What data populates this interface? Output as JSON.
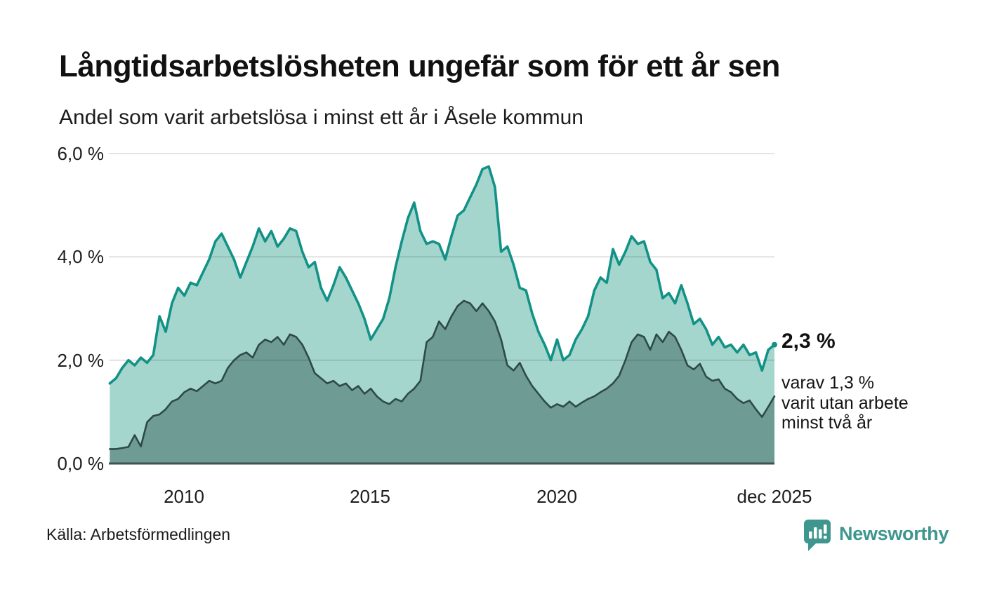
{
  "header": {
    "title": "Långtidsarbetslösheten ungefär som för ett år sen",
    "subtitle": "Andel som varit arbetslösa i minst ett år i Åsele kommun"
  },
  "chart_data": {
    "type": "area",
    "title": "Långtidsarbetslösheten ungefär som för ett år sen",
    "subtitle": "Andel som varit arbetslösa i minst ett år i Åsele kommun",
    "x_start_year": 2008.0,
    "x_end_year": 2025.92,
    "x_step_years": 0.1667,
    "x_tick_labels": [
      "2010",
      "2015",
      "2020",
      "dec 2025"
    ],
    "y_tick_labels": [
      "6,0 %",
      "4,0 %",
      "2,0 %",
      "0,0 %"
    ],
    "y_grid_values": [
      2,
      4,
      6
    ],
    "ylim": [
      0,
      6
    ],
    "grid": true,
    "legend_position": "none",
    "unit": "%",
    "series": [
      {
        "name": "andel arbetslösa minst ett år",
        "color": "#129286",
        "fill": "#a5d6ce",
        "latest_value": 2.3,
        "values": [
          1.55,
          1.65,
          1.85,
          2.0,
          1.9,
          2.05,
          1.95,
          2.1,
          2.85,
          2.55,
          3.1,
          3.4,
          3.25,
          3.5,
          3.45,
          3.7,
          3.95,
          4.3,
          4.45,
          4.2,
          3.95,
          3.6,
          3.9,
          4.2,
          4.55,
          4.3,
          4.5,
          4.2,
          4.35,
          4.55,
          4.5,
          4.1,
          3.8,
          3.9,
          3.4,
          3.15,
          3.45,
          3.8,
          3.6,
          3.35,
          3.1,
          2.8,
          2.4,
          2.6,
          2.8,
          3.2,
          3.8,
          4.3,
          4.75,
          5.05,
          4.5,
          4.25,
          4.3,
          4.25,
          3.95,
          4.4,
          4.8,
          4.9,
          5.15,
          5.4,
          5.7,
          5.75,
          5.35,
          4.1,
          4.2,
          3.85,
          3.4,
          3.35,
          2.9,
          2.55,
          2.3,
          2.0,
          2.4,
          2.0,
          2.1,
          2.4,
          2.6,
          2.85,
          3.35,
          3.6,
          3.5,
          4.15,
          3.85,
          4.1,
          4.4,
          4.25,
          4.3,
          3.9,
          3.75,
          3.2,
          3.3,
          3.1,
          3.45,
          3.1,
          2.7,
          2.8,
          2.6,
          2.3,
          2.45,
          2.25,
          2.3,
          2.15,
          2.3,
          2.1,
          2.15,
          1.8,
          2.2,
          2.3
        ]
      },
      {
        "name": "andel som varit utan arbete minst två år",
        "color": "#2e4a46",
        "fill": "#6f9b95",
        "latest_value": 1.3,
        "values": [
          0.28,
          0.28,
          0.3,
          0.32,
          0.55,
          0.33,
          0.8,
          0.92,
          0.95,
          1.05,
          1.2,
          1.25,
          1.38,
          1.45,
          1.4,
          1.5,
          1.6,
          1.55,
          1.6,
          1.85,
          2.0,
          2.1,
          2.15,
          2.05,
          2.3,
          2.4,
          2.35,
          2.45,
          2.3,
          2.5,
          2.45,
          2.3,
          2.05,
          1.75,
          1.65,
          1.55,
          1.6,
          1.5,
          1.55,
          1.42,
          1.5,
          1.35,
          1.45,
          1.3,
          1.2,
          1.15,
          1.25,
          1.2,
          1.35,
          1.45,
          1.6,
          2.35,
          2.45,
          2.75,
          2.6,
          2.85,
          3.05,
          3.15,
          3.1,
          2.95,
          3.1,
          2.95,
          2.75,
          2.4,
          1.9,
          1.8,
          1.95,
          1.7,
          1.5,
          1.35,
          1.2,
          1.08,
          1.15,
          1.1,
          1.2,
          1.1,
          1.18,
          1.25,
          1.3,
          1.38,
          1.45,
          1.55,
          1.7,
          2.0,
          2.35,
          2.5,
          2.45,
          2.2,
          2.5,
          2.35,
          2.55,
          2.45,
          2.2,
          1.9,
          1.82,
          1.93,
          1.68,
          1.6,
          1.63,
          1.45,
          1.38,
          1.25,
          1.17,
          1.22,
          1.05,
          0.9,
          1.1,
          1.3
        ]
      }
    ],
    "annotations": {
      "latest_total": "2,3 %",
      "latest_detail_line1": "varav 1,3 %",
      "latest_detail_line2": "varit utan arbete",
      "latest_detail_line3": "minst två år"
    }
  },
  "footer": {
    "source": "Källa: Arbetsförmedlingen",
    "brand": "Newsworthy",
    "brand_color": "#3e968e"
  }
}
